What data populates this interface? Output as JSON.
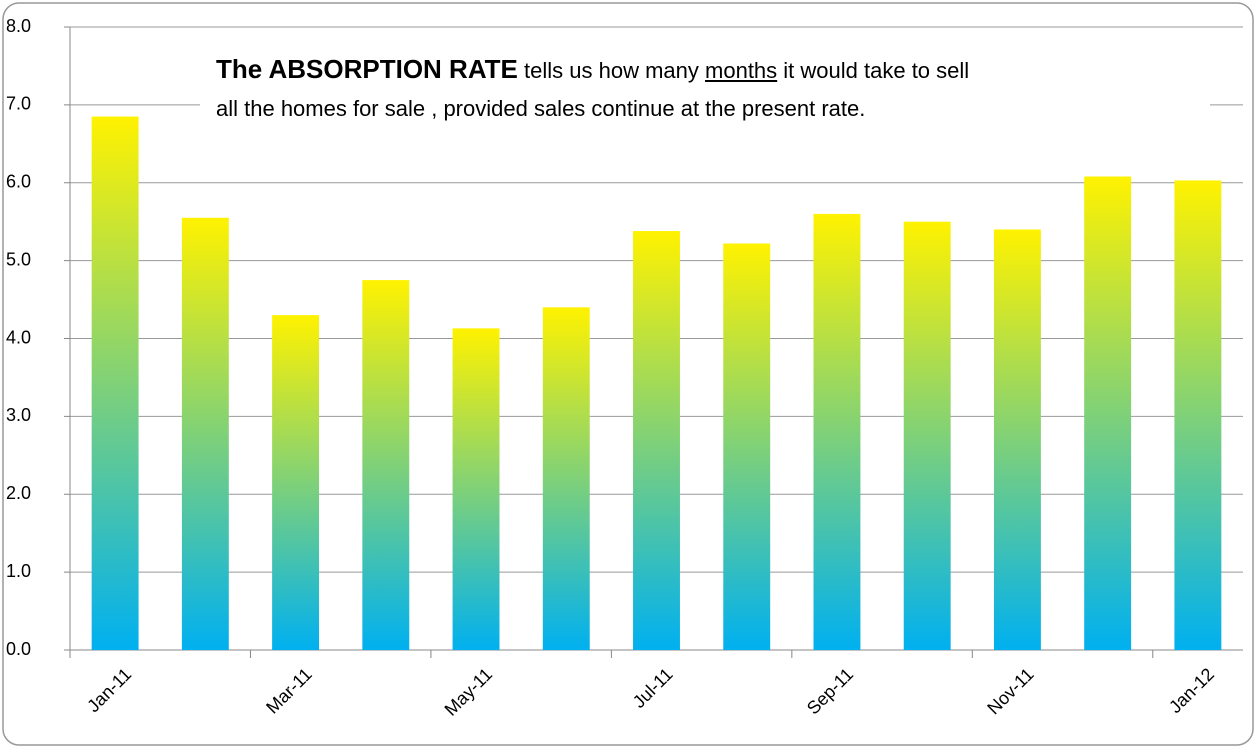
{
  "chart_data": {
    "type": "bar",
    "annotation": {
      "bold": "The ABSORPTION RATE",
      "line1": "tells us how many",
      "underlined": "months",
      "line1_end": "it would take to sell",
      "line2": "all the homes for sale , provided sales continue at the present rate."
    },
    "categories": [
      "Jan-11",
      null,
      "Mar-11",
      null,
      "May-11",
      null,
      "Jul-11",
      null,
      "Sep-11",
      null,
      "Nov-11",
      null,
      "Jan-12"
    ],
    "values": [
      6.85,
      5.55,
      4.3,
      4.75,
      4.13,
      4.4,
      5.38,
      5.22,
      5.6,
      5.5,
      5.4,
      6.08,
      6.03
    ],
    "gradient": [
      "#fff200",
      "#00b0f0"
    ],
    "ylim": [
      0,
      8
    ],
    "yticks": [
      {
        "value": 0,
        "label": "0.0"
      },
      {
        "value": 1,
        "label": "1.0"
      },
      {
        "value": 2,
        "label": "2.0"
      },
      {
        "value": 3,
        "label": "3.0"
      },
      {
        "value": 4,
        "label": "4.0"
      },
      {
        "value": 5,
        "label": "5.0"
      },
      {
        "value": 6,
        "label": "6.0"
      },
      {
        "value": 7,
        "label": "7.0"
      },
      {
        "value": 8,
        "label": "8.0"
      }
    ],
    "grid": true
  }
}
